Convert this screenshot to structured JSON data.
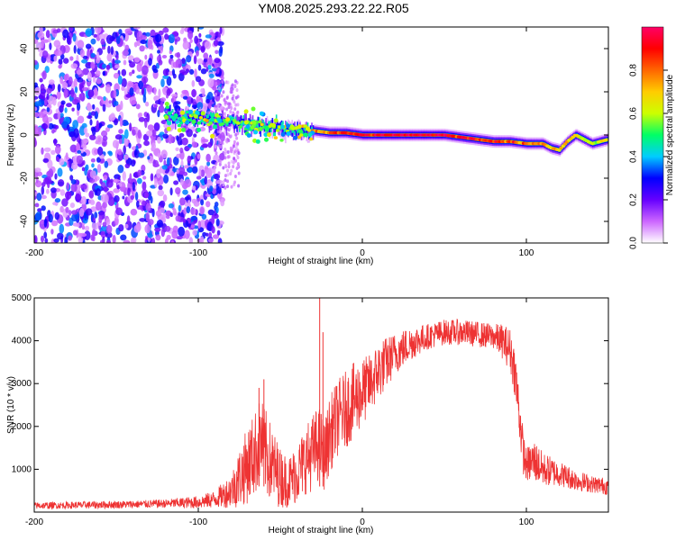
{
  "chart_data": [
    {
      "type": "heatmap",
      "title": "YM08.2025.293.22.22.R05",
      "xlabel": "Height of straight line (km)",
      "ylabel": "Frequency (Hz)",
      "xlim": [
        -200,
        150
      ],
      "ylim": [
        -50,
        50
      ],
      "xticks": [
        -200,
        -100,
        0,
        100
      ],
      "yticks": [
        -40,
        -20,
        0,
        20,
        40
      ],
      "colorbar": {
        "label": "Normalized spectral amplitude",
        "range": [
          0,
          1
        ],
        "ticks": [
          "0.0",
          "0.2",
          "0.4",
          "0.6",
          "0.8"
        ],
        "colors": [
          "#ffffff",
          "#cc66ff",
          "#6600ff",
          "#0000ff",
          "#00ccff",
          "#00ff66",
          "#ccff00",
          "#ffcc00",
          "#ff6600",
          "#ff0000",
          "#ff0066"
        ]
      },
      "noise_region": {
        "x_from": -200,
        "x_to": -85,
        "freq_from": -50,
        "freq_to": 50
      },
      "signal_track": [
        {
          "x": -120,
          "f": 9,
          "amp": 0.55
        },
        {
          "x": -110,
          "f": 7,
          "amp": 0.5
        },
        {
          "x": -100,
          "f": 8,
          "amp": 0.6
        },
        {
          "x": -90,
          "f": 7,
          "amp": 0.55
        },
        {
          "x": -80,
          "f": 6,
          "amp": 0.5
        },
        {
          "x": -70,
          "f": 5,
          "amp": 0.55
        },
        {
          "x": -60,
          "f": 4,
          "amp": 0.6
        },
        {
          "x": -50,
          "f": 3,
          "amp": 0.55
        },
        {
          "x": -40,
          "f": 2,
          "amp": 0.6
        },
        {
          "x": -30,
          "f": 2,
          "amp": 0.7
        },
        {
          "x": -20,
          "f": 1,
          "amp": 0.8
        },
        {
          "x": -10,
          "f": 1,
          "amp": 0.85
        },
        {
          "x": 0,
          "f": 0,
          "amp": 0.9
        },
        {
          "x": 10,
          "f": 0,
          "amp": 0.95
        },
        {
          "x": 20,
          "f": 0,
          "amp": 0.95
        },
        {
          "x": 30,
          "f": 0,
          "amp": 0.95
        },
        {
          "x": 40,
          "f": 0,
          "amp": 0.95
        },
        {
          "x": 50,
          "f": 0,
          "amp": 0.95
        },
        {
          "x": 60,
          "f": -1,
          "amp": 0.9
        },
        {
          "x": 70,
          "f": -2,
          "amp": 0.9
        },
        {
          "x": 80,
          "f": -3,
          "amp": 0.85
        },
        {
          "x": 90,
          "f": -3,
          "amp": 0.85
        },
        {
          "x": 100,
          "f": -4,
          "amp": 0.8
        },
        {
          "x": 110,
          "f": -4,
          "amp": 0.75
        },
        {
          "x": 115,
          "f": -6,
          "amp": 0.7
        },
        {
          "x": 120,
          "f": -7,
          "amp": 0.7
        },
        {
          "x": 125,
          "f": -3,
          "amp": 0.7
        },
        {
          "x": 130,
          "f": 0,
          "amp": 0.65
        },
        {
          "x": 135,
          "f": -2,
          "amp": 0.6
        },
        {
          "x": 140,
          "f": -4,
          "amp": 0.6
        },
        {
          "x": 150,
          "f": -2,
          "amp": 0.6
        }
      ]
    },
    {
      "type": "line",
      "xlabel": "Height of straight line (km)",
      "ylabel": "SNR (10 * v/v)",
      "xlim": [
        -200,
        150
      ],
      "ylim": [
        0,
        5000
      ],
      "xticks": [
        -200,
        -100,
        0,
        100
      ],
      "yticks": [
        1000,
        2000,
        3000,
        4000,
        5000
      ],
      "series": [
        {
          "name": "SNR",
          "color": "#ee3333",
          "x": [
            -200,
            -180,
            -160,
            -140,
            -120,
            -100,
            -90,
            -80,
            -75,
            -70,
            -65,
            -62,
            -58,
            -55,
            -50,
            -45,
            -40,
            -35,
            -30,
            -27,
            -25,
            -23,
            -20,
            -15,
            -10,
            -5,
            0,
            5,
            10,
            20,
            30,
            40,
            50,
            60,
            70,
            80,
            85,
            90,
            93,
            96,
            98,
            100,
            105,
            110,
            120,
            130,
            140,
            150
          ],
          "mean": [
            150,
            160,
            170,
            180,
            200,
            230,
            300,
            500,
            800,
            1100,
            1400,
            1700,
            1300,
            1100,
            800,
            700,
            900,
            1200,
            1400,
            1600,
            1500,
            1300,
            1800,
            2200,
            2400,
            2600,
            2800,
            3000,
            3300,
            3700,
            3950,
            4100,
            4200,
            4200,
            4150,
            4100,
            4000,
            3800,
            3300,
            2200,
            1400,
            1100,
            1200,
            1000,
            900,
            750,
            650,
            600
          ],
          "spread": [
            80,
            80,
            90,
            90,
            100,
            150,
            200,
            400,
            700,
            900,
            1000,
            1000,
            1000,
            900,
            700,
            600,
            700,
            800,
            900,
            900,
            900,
            800,
            900,
            900,
            900,
            900,
            800,
            700,
            700,
            500,
            400,
            300,
            300,
            300,
            300,
            300,
            400,
            500,
            600,
            600,
            500,
            400,
            500,
            400,
            300,
            250,
            200,
            200
          ]
        }
      ],
      "spikes": [
        {
          "x": -26,
          "y": 5000
        },
        {
          "x": -24,
          "y": 4200
        },
        {
          "x": -60,
          "y": 3100
        },
        {
          "x": -63,
          "y": 2900
        }
      ]
    }
  ]
}
